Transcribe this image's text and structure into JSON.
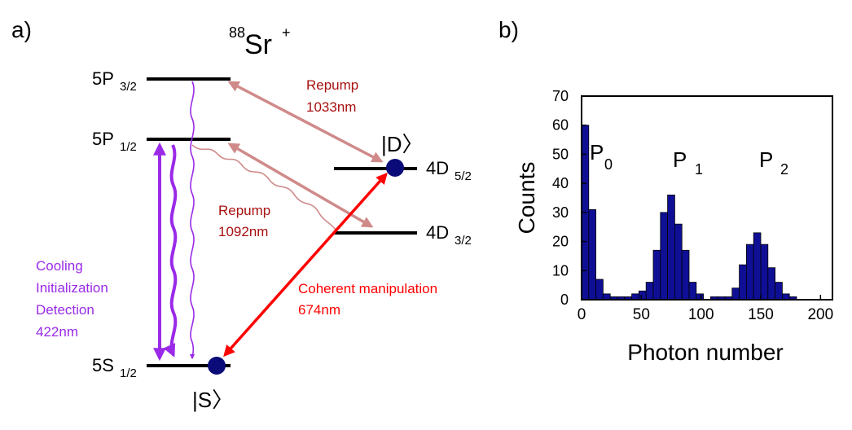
{
  "panel_a": {
    "label": "a)",
    "ion": {
      "mass": "88",
      "symbol": "Sr",
      "charge": "+"
    },
    "levels": {
      "p32": {
        "main": "5P",
        "sub": "3/2"
      },
      "p12": {
        "main": "5P",
        "sub": "1/2"
      },
      "s12": {
        "main": "5S",
        "sub": "1/2"
      },
      "d52": {
        "main": "4D",
        "sub": "5/2"
      },
      "d32": {
        "main": "4D",
        "sub": "3/2"
      }
    },
    "ket_d": "|D〉",
    "ket_s": "|S〉",
    "repump_1033": {
      "name": "Repump",
      "wavelength": "1033nm"
    },
    "repump_1092": {
      "name": "Repump",
      "wavelength": "1092nm"
    },
    "cooling": {
      "line1": "Cooling",
      "line2": "Initialization",
      "line3": "Detection",
      "line4": "422nm"
    },
    "coherent": {
      "name": "Coherent manipulation",
      "wavelength": "674nm"
    },
    "colors": {
      "purple": "#9a2ae8",
      "repump": "#d08a8a",
      "repump_text": "#a81010",
      "coherent": "#ff0000",
      "ion_dot": "#0a0a78"
    }
  },
  "panel_b": {
    "label": "b)",
    "peaks": {
      "p0": {
        "main": "P",
        "sub": "0"
      },
      "p1": {
        "main": "P",
        "sub": "1"
      },
      "p2": {
        "main": "P",
        "sub": "2"
      }
    }
  },
  "chart_data": {
    "type": "bar",
    "xlabel": "Photon number",
    "ylabel": "Counts",
    "xlim": [
      0,
      210
    ],
    "ylim": [
      0,
      70
    ],
    "xticks": [
      0,
      50,
      100,
      150,
      200
    ],
    "yticks": [
      0,
      10,
      20,
      30,
      40,
      50,
      60,
      70
    ],
    "bin_width": 6,
    "bar_color": "#0f0f96",
    "bins": [
      0,
      6,
      12,
      18,
      24,
      30,
      36,
      42,
      48,
      54,
      60,
      66,
      72,
      78,
      84,
      90,
      96,
      102,
      108,
      114,
      120,
      126,
      132,
      138,
      144,
      150,
      156,
      162,
      168,
      174,
      180,
      186,
      192
    ],
    "values": [
      60,
      31,
      7,
      2,
      1,
      1,
      1,
      2,
      3,
      6,
      17,
      30,
      36,
      26,
      17,
      6,
      2,
      0,
      1,
      1,
      1,
      4,
      12,
      19,
      23,
      19,
      11,
      6,
      2,
      1,
      0,
      0,
      0
    ]
  }
}
